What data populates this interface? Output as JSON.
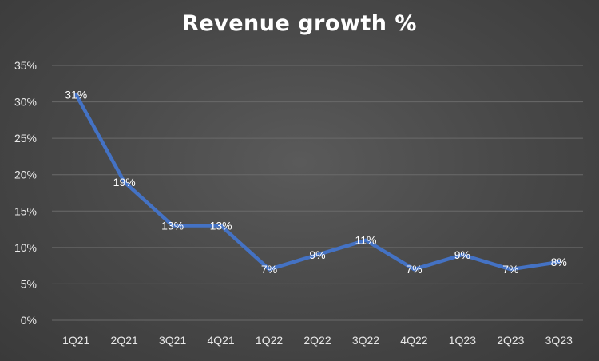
{
  "chart_data": {
    "type": "line",
    "title": "Revenue growth %",
    "categories": [
      "1Q21",
      "2Q21",
      "3Q21",
      "4Q21",
      "1Q22",
      "2Q22",
      "3Q22",
      "4Q22",
      "1Q23",
      "2Q23",
      "3Q23"
    ],
    "series": [
      {
        "values": [
          31,
          19,
          13,
          13,
          7,
          9,
          11,
          7,
          9,
          7,
          8
        ],
        "labels": [
          "31%",
          "19%",
          "13%",
          "13%",
          "7%",
          "9%",
          "11%",
          "7%",
          "9%",
          "7%",
          "8%"
        ],
        "color": "#4472c4"
      }
    ],
    "yticks": [
      "0%",
      "5%",
      "10%",
      "15%",
      "20%",
      "25%",
      "30%",
      "35%"
    ],
    "ylim": [
      0,
      35
    ],
    "grid": true,
    "legend": "none",
    "xlabel": "",
    "ylabel": ""
  },
  "colors": {
    "gridline": "#6a6a6a",
    "axis_text": "#e8e8e8",
    "line": "#4472c4"
  }
}
